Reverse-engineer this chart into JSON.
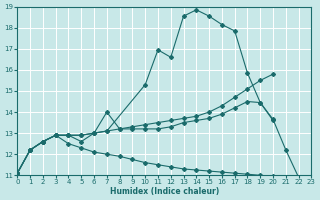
{
  "xlabel": "Humidex (Indice chaleur)",
  "xlim": [
    0,
    23
  ],
  "ylim": [
    11,
    19
  ],
  "xticks": [
    0,
    1,
    2,
    3,
    4,
    5,
    6,
    7,
    8,
    9,
    10,
    11,
    12,
    13,
    14,
    15,
    16,
    17,
    18,
    19,
    20,
    21,
    22,
    23
  ],
  "yticks": [
    11,
    12,
    13,
    14,
    15,
    16,
    17,
    18,
    19
  ],
  "bg_color": "#c8e8e8",
  "line_color": "#1a6b6b",
  "grid_color": "#ffffff",
  "curve1_x": [
    0,
    1,
    2,
    3,
    4,
    5,
    6,
    7,
    10,
    11,
    12,
    13,
    14,
    15,
    16,
    17,
    18,
    19,
    20,
    21,
    22
  ],
  "curve1_y": [
    11.1,
    12.2,
    12.6,
    12.9,
    12.9,
    12.6,
    13.0,
    13.1,
    15.3,
    16.95,
    16.6,
    18.55,
    18.85,
    18.55,
    18.15,
    17.85,
    15.85,
    14.45,
    13.65,
    12.2,
    10.9
  ],
  "curve2_x": [
    0,
    1,
    2,
    3,
    4,
    5,
    6,
    7,
    8,
    9,
    10,
    11,
    12,
    13,
    14,
    15,
    16,
    17,
    18,
    19,
    20
  ],
  "curve2_y": [
    11.1,
    12.2,
    12.6,
    12.9,
    12.9,
    12.9,
    13.0,
    13.1,
    13.2,
    13.3,
    13.4,
    13.5,
    13.6,
    13.7,
    13.8,
    14.0,
    14.3,
    14.7,
    15.1,
    15.5,
    15.8
  ],
  "curve3_x": [
    0,
    1,
    2,
    3,
    4,
    5,
    6,
    7,
    8,
    9,
    10,
    11,
    12,
    13,
    14,
    15,
    16,
    17,
    18,
    19,
    20,
    21,
    22
  ],
  "curve3_y": [
    11.1,
    12.2,
    12.6,
    12.9,
    12.5,
    12.3,
    12.1,
    12.0,
    11.9,
    11.75,
    11.6,
    11.5,
    11.4,
    11.3,
    11.25,
    11.2,
    11.15,
    11.1,
    11.05,
    11.0,
    10.95,
    10.92,
    10.9
  ],
  "curve4_x": [
    0,
    1,
    2,
    3,
    4,
    5,
    6,
    7,
    8,
    9,
    10,
    11,
    12,
    13,
    14,
    15,
    16,
    17,
    18,
    19,
    20
  ],
  "curve4_y": [
    11.1,
    12.2,
    12.6,
    12.9,
    12.9,
    12.9,
    13.0,
    14.0,
    13.2,
    13.2,
    13.2,
    13.2,
    13.3,
    13.5,
    13.6,
    13.7,
    13.9,
    14.2,
    14.5,
    14.45,
    13.6
  ]
}
